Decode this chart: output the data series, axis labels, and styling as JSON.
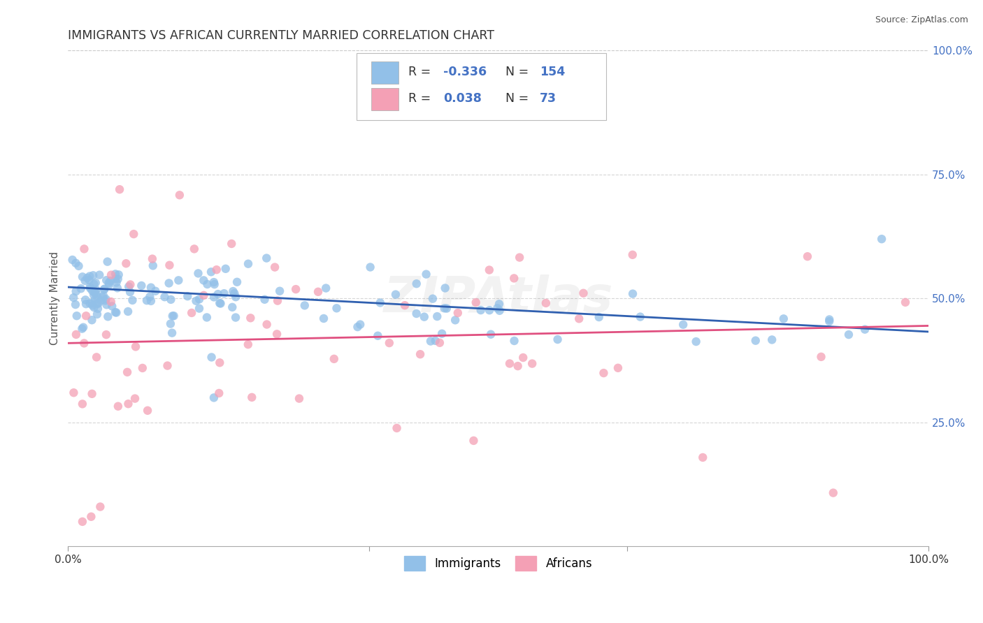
{
  "title": "IMMIGRANTS VS AFRICAN CURRENTLY MARRIED CORRELATION CHART",
  "source": "Source: ZipAtlas.com",
  "ylabel": "Currently Married",
  "R1": -0.336,
  "N1": 154,
  "R2": 0.038,
  "N2": 73,
  "blue_color": "#92C0E8",
  "pink_color": "#F4A0B5",
  "blue_line_color": "#3060B0",
  "pink_line_color": "#E05080",
  "legend1_label": "Immigrants",
  "legend2_label": "Africans",
  "box_label_color": "#4472C4",
  "title_color": "#333333",
  "source_color": "#555555",
  "grid_color": "#CCCCCC",
  "watermark_text": "ZIPAtlas"
}
